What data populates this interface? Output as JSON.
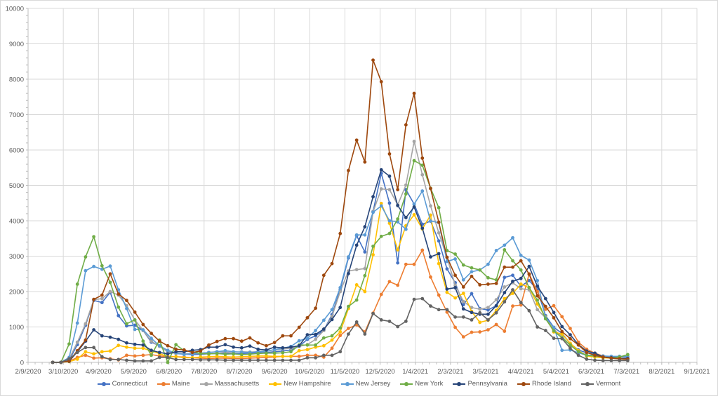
{
  "chart_data": {
    "type": "line",
    "title": "",
    "xlabel": "",
    "ylabel": "",
    "ylim": [
      0,
      10000
    ],
    "y_ticks": [
      "0",
      "1000",
      "2000",
      "3000",
      "4000",
      "5000",
      "6000",
      "7000",
      "8000",
      "9000",
      "10000"
    ],
    "x_tick_labels": [
      "2/9/2020",
      "3/10/2020",
      "4/9/2020",
      "5/9/2020",
      "6/8/2020",
      "7/8/2020",
      "8/7/2020",
      "9/6/2020",
      "10/6/2020",
      "11/5/2020",
      "12/5/2020",
      "1/4/2021",
      "2/3/2021",
      "3/5/2021",
      "4/4/2021",
      "5/4/2021",
      "6/3/2021",
      "7/3/2021",
      "8/2/2021",
      "9/1/2021"
    ],
    "x_tick_interval_days": 30,
    "x_start_date": "2020-03-01",
    "x_step_days": 7,
    "grid": true,
    "legend_position": "bottom",
    "series": [
      {
        "name": "Connecticut",
        "color": "#4472C4",
        "values": [
          0,
          0,
          60,
          500,
          1050,
          1750,
          1690,
          1980,
          1320,
          1030,
          1050,
          900,
          570,
          470,
          300,
          250,
          230,
          220,
          230,
          240,
          250,
          260,
          240,
          250,
          260,
          270,
          280,
          300,
          320,
          350,
          450,
          650,
          750,
          900,
          1350,
          2050,
          2950,
          3580,
          3120,
          4260,
          5340,
          4500,
          2810,
          4880,
          4470,
          3900,
          3990,
          3430,
          2640,
          2250,
          1630,
          1940,
          1520,
          1480,
          1600,
          2400,
          2460,
          2150,
          2310,
          2050,
          1320,
          990,
          820,
          530,
          350,
          270,
          240,
          180,
          160,
          150,
          150
        ]
      },
      {
        "name": "Maine",
        "color": "#ED7D31",
        "values": [
          0,
          0,
          30,
          140,
          200,
          120,
          130,
          100,
          70,
          200,
          180,
          200,
          220,
          180,
          170,
          160,
          150,
          130,
          120,
          110,
          120,
          120,
          110,
          110,
          120,
          130,
          140,
          150,
          170,
          170,
          170,
          200,
          200,
          150,
          400,
          760,
          960,
          1060,
          860,
          1390,
          1920,
          2280,
          2180,
          2770,
          2770,
          3170,
          2410,
          1900,
          1420,
          990,
          720,
          850,
          860,
          920,
          1070,
          880,
          1590,
          1620,
          2500,
          2000,
          1500,
          1600,
          1290,
          960,
          570,
          370,
          260,
          180,
          120,
          100,
          80
        ]
      },
      {
        "name": "Massachusetts",
        "color": "#A5A5A5",
        "values": [
          0,
          0,
          100,
          570,
          1090,
          1770,
          1800,
          2000,
          1900,
          1600,
          1200,
          900,
          600,
          450,
          300,
          250,
          250,
          240,
          260,
          280,
          300,
          290,
          280,
          300,
          290,
          300,
          320,
          350,
          380,
          400,
          450,
          500,
          650,
          900,
          1300,
          2000,
          2580,
          2620,
          2650,
          4250,
          4900,
          4880,
          4450,
          5010,
          6240,
          5300,
          4420,
          3660,
          2960,
          2180,
          1720,
          1550,
          1500,
          1550,
          1770,
          2130,
          2250,
          2080,
          2050,
          1490,
          1260,
          930,
          730,
          480,
          320,
          200,
          170,
          150,
          130,
          120,
          110
        ]
      },
      {
        "name": "New Hampshire",
        "color": "#FFC000",
        "values": [
          0,
          0,
          20,
          90,
          300,
          240,
          300,
          320,
          480,
          430,
          400,
          400,
          320,
          250,
          160,
          160,
          130,
          130,
          150,
          160,
          170,
          160,
          150,
          160,
          170,
          180,
          180,
          170,
          170,
          170,
          330,
          360,
          430,
          470,
          630,
          860,
          1520,
          2190,
          2000,
          3040,
          4490,
          3930,
          3180,
          3860,
          4170,
          3770,
          4160,
          2790,
          1980,
          1820,
          1950,
          1440,
          1130,
          1190,
          1470,
          1800,
          1950,
          2210,
          2110,
          1650,
          1280,
          860,
          800,
          540,
          330,
          180,
          150,
          130,
          120,
          110,
          100
        ]
      },
      {
        "name": "New Jersey",
        "color": "#5B9BD5",
        "values": [
          0,
          0,
          140,
          1110,
          2590,
          2710,
          2630,
          2720,
          2050,
          1520,
          930,
          920,
          680,
          470,
          340,
          270,
          220,
          250,
          260,
          280,
          300,
          330,
          300,
          290,
          280,
          300,
          320,
          360,
          400,
          450,
          610,
          680,
          900,
          1190,
          1490,
          2110,
          2980,
          3600,
          3600,
          4240,
          4420,
          4000,
          3970,
          3760,
          4470,
          4840,
          3990,
          3950,
          2850,
          2920,
          2330,
          2560,
          2610,
          2770,
          3160,
          3310,
          3520,
          3020,
          2890,
          2310,
          1260,
          990,
          340,
          350,
          270,
          200,
          200,
          180,
          170,
          170,
          170
        ]
      },
      {
        "name": "New York",
        "color": "#70AD47",
        "values": [
          0,
          0,
          520,
          2210,
          2980,
          3550,
          2730,
          2260,
          1560,
          1090,
          1200,
          600,
          200,
          630,
          0,
          500,
          330,
          300,
          250,
          240,
          250,
          230,
          240,
          220,
          230,
          250,
          260,
          260,
          270,
          300,
          490,
          490,
          490,
          690,
          750,
          970,
          1580,
          1760,
          2450,
          3280,
          3560,
          3640,
          4050,
          4760,
          5700,
          5570,
          4920,
          4370,
          3160,
          3060,
          2750,
          2670,
          2610,
          2390,
          2330,
          3180,
          2870,
          2610,
          2110,
          1760,
          1230,
          890,
          690,
          490,
          300,
          200,
          180,
          150,
          130,
          150,
          220
        ]
      },
      {
        "name": "Pennsylvania",
        "color": "#264478",
        "values": [
          0,
          0,
          30,
          300,
          600,
          920,
          750,
          710,
          650,
          550,
          510,
          490,
          340,
          280,
          240,
          300,
          300,
          340,
          360,
          430,
          430,
          500,
          430,
          410,
          460,
          370,
          350,
          430,
          410,
          430,
          470,
          780,
          790,
          940,
          1210,
          1550,
          2510,
          3310,
          3830,
          4680,
          5440,
          5260,
          4430,
          4090,
          4390,
          3790,
          2980,
          3070,
          2070,
          2110,
          1510,
          1410,
          1360,
          1360,
          1600,
          1970,
          2290,
          2370,
          2710,
          2150,
          1800,
          1410,
          1010,
          780,
          500,
          320,
          260,
          150,
          130,
          100,
          110
        ]
      },
      {
        "name": "Rhode Island",
        "color": "#9E480E",
        "values": [
          0,
          0,
          40,
          330,
          630,
          1780,
          1900,
          2500,
          1930,
          1750,
          1420,
          1070,
          820,
          600,
          470,
          370,
          350,
          280,
          320,
          490,
          590,
          670,
          670,
          600,
          690,
          550,
          470,
          560,
          750,
          750,
          990,
          1260,
          1530,
          2460,
          2790,
          3640,
          5420,
          6280,
          5660,
          8540,
          7930,
          5890,
          4880,
          6710,
          7600,
          5770,
          4910,
          3960,
          2970,
          2460,
          2130,
          2430,
          2190,
          2210,
          2230,
          2690,
          2690,
          2870,
          2490,
          1880,
          1580,
          1260,
          870,
          670,
          490,
          280,
          200,
          150,
          120,
          100,
          90
        ]
      },
      {
        "name": "Vermont",
        "color": "#636363",
        "values": [
          0,
          0,
          100,
          280,
          420,
          420,
          160,
          80,
          80,
          60,
          40,
          40,
          40,
          140,
          140,
          80,
          80,
          80,
          70,
          70,
          70,
          60,
          60,
          60,
          60,
          60,
          60,
          60,
          60,
          60,
          60,
          130,
          130,
          200,
          200,
          300,
          800,
          1140,
          800,
          1380,
          1200,
          1160,
          1010,
          1160,
          1780,
          1800,
          1590,
          1490,
          1490,
          1280,
          1280,
          1200,
          1400,
          1200,
          1400,
          1710,
          2050,
          1690,
          1460,
          1000,
          900,
          680,
          670,
          400,
          200,
          90,
          60,
          50,
          50,
          50,
          50
        ]
      }
    ]
  }
}
